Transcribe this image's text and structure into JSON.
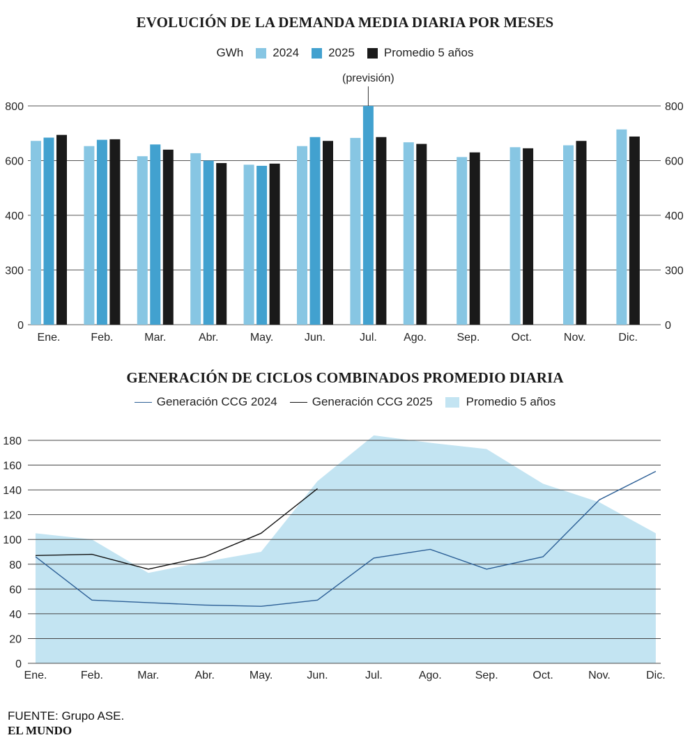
{
  "source": "FUENTE: Grupo ASE.",
  "brand": "EL MUNDO",
  "colors": {
    "c2024": "#87c6e3",
    "c2025": "#42a1cf",
    "cavg": "#1a1a1a",
    "area": "#c3e4f2",
    "line2024": "#2c5f96",
    "line2025": "#111111"
  },
  "chart_data": [
    {
      "type": "bar",
      "title": "EVOLUCIÓN DE LA DEMANDA MEDIA DIARIA POR MESES",
      "unit_label": "GWh",
      "categories": [
        "Ene.",
        "Feb.",
        "Mar.",
        "Abr.",
        "May.",
        "Jun.",
        "Jul.",
        "Ago.",
        "Sep.",
        "Oct.",
        "Nov.",
        "Dic."
      ],
      "series": [
        {
          "name": "2024",
          "values": [
            672,
            653,
            616,
            627,
            585,
            653,
            683,
            667,
            613,
            649,
            656,
            714
          ]
        },
        {
          "name": "2025",
          "values": [
            684,
            676,
            659,
            600,
            581,
            686,
            800,
            null,
            null,
            null,
            null,
            null
          ]
        },
        {
          "name": "Promedio 5 años",
          "values": [
            694,
            678,
            640,
            591,
            589,
            672,
            686,
            661,
            630,
            645,
            672,
            688
          ]
        }
      ],
      "annotation": {
        "text": "(previsión)",
        "category": "Jul.",
        "series": "2025"
      },
      "y_ticks": [
        {
          "label": "0",
          "value": 0
        },
        {
          "label": "300",
          "value": 300
        },
        {
          "label": "400",
          "value": 400
        },
        {
          "label": "600",
          "value": 600
        },
        {
          "label": "800",
          "value": 800
        }
      ],
      "grid": true
    },
    {
      "type": "line",
      "title": "GENERACIÓN DE CICLOS COMBINADOS PROMEDIO DIARIA",
      "categories": [
        "Ene.",
        "Feb.",
        "Mar.",
        "Abr.",
        "May.",
        "Jun.",
        "Jul.",
        "Ago.",
        "Sep.",
        "Oct.",
        "Nov.",
        "Dic."
      ],
      "series": [
        {
          "name": "Generación CCG 2024",
          "kind": "line",
          "values": [
            86,
            51,
            49,
            47,
            46,
            51,
            85,
            92,
            76,
            86,
            132,
            155
          ]
        },
        {
          "name": "Generación CCG 2025",
          "kind": "line",
          "values": [
            87,
            88,
            76,
            86,
            105,
            141,
            null,
            null,
            null,
            null,
            null,
            null
          ]
        },
        {
          "name": "Promedio 5 años",
          "kind": "area",
          "values": [
            105,
            100,
            73,
            82,
            90,
            147,
            184,
            178,
            173,
            145,
            130,
            105
          ]
        }
      ],
      "ylim": [
        0,
        180
      ],
      "y_ticks": [
        0,
        20,
        40,
        60,
        80,
        100,
        120,
        140,
        160,
        180
      ],
      "grid": true
    }
  ]
}
